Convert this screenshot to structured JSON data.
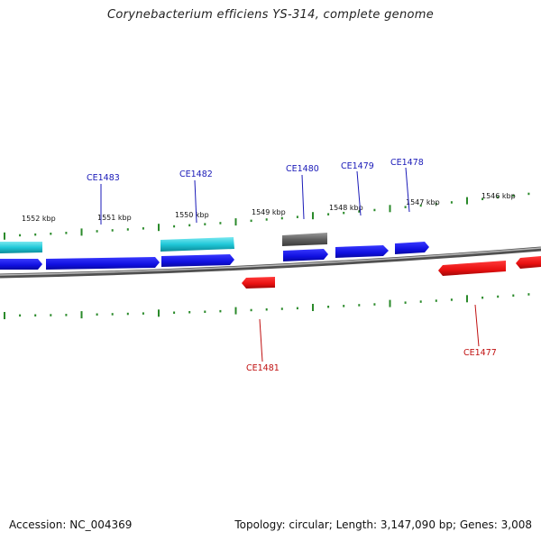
{
  "title": "Corynebacterium efficiens YS-314, complete genome",
  "footer": {
    "accession": "Accession: NC_004369",
    "summary": "Topology: circular; Length: 3,147,090 bp; Genes: 3,008"
  },
  "kbp_labels": [
    "1552 kbp",
    "1551 kbp",
    "1550 kbp",
    "1549 kbp",
    "1548 kbp",
    "1547 kbp",
    "1546 kbp"
  ],
  "gene_labels": {
    "ce1483": "CE1483",
    "ce1482": "CE1482",
    "ce1480": "CE1480",
    "ce1479": "CE1479",
    "ce1478": "CE1478",
    "ce1481": "CE1481",
    "ce1477": "CE1477"
  },
  "colors": {
    "forward_gene": "#1010e8",
    "reverse_gene": "#e81010",
    "cyan_gene": "#20c8d8",
    "gray_gene": "#606060",
    "tick": "#2a8a2a",
    "backbone": "#808080",
    "label_blue": "#1a1ab8",
    "label_red": "#c01010"
  }
}
